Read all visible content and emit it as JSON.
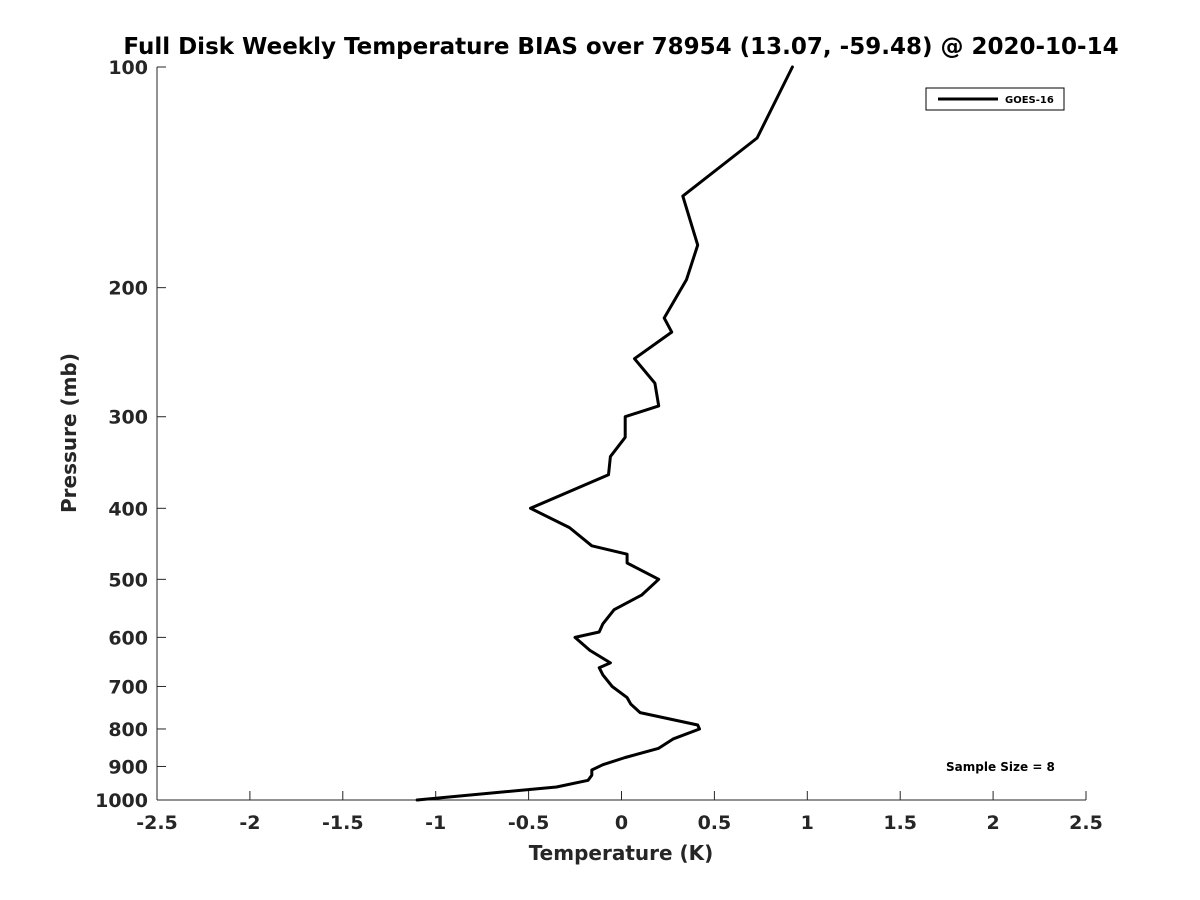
{
  "chart_data": {
    "type": "line",
    "title": "Full Disk Weekly Temperature BIAS over 78954 (13.07, -59.48) @ 2020-10-14",
    "xlabel": "Temperature (K)",
    "ylabel": "Pressure (mb)",
    "xlim": [
      -2.5,
      2.5
    ],
    "ylim": [
      100,
      1000
    ],
    "yscale": "log",
    "y_reversed": true,
    "x_ticks": [
      -2.5,
      -2,
      -1.5,
      -1,
      -0.5,
      0,
      0.5,
      1,
      1.5,
      2,
      2.5
    ],
    "x_tick_labels": [
      "-2.5",
      "-2",
      "-1.5",
      "-1",
      "-0.5",
      "0",
      "0.5",
      "1",
      "1.5",
      "2",
      "2.5"
    ],
    "y_ticks": [
      100,
      200,
      300,
      400,
      500,
      600,
      700,
      800,
      900,
      1000
    ],
    "y_tick_labels": [
      "100",
      "200",
      "300",
      "400",
      "500",
      "600",
      "700",
      "800",
      "900",
      "1000"
    ],
    "grid": false,
    "legend_position": "top-right",
    "series": [
      {
        "name": "GOES-16",
        "color": "#000000",
        "points": [
          {
            "t": 0.92,
            "p": 100
          },
          {
            "t": 0.73,
            "p": 125
          },
          {
            "t": 0.33,
            "p": 150
          },
          {
            "t": 0.41,
            "p": 175
          },
          {
            "t": 0.35,
            "p": 195
          },
          {
            "t": 0.23,
            "p": 220
          },
          {
            "t": 0.27,
            "p": 230
          },
          {
            "t": 0.07,
            "p": 250
          },
          {
            "t": 0.18,
            "p": 270
          },
          {
            "t": 0.2,
            "p": 290
          },
          {
            "t": 0.02,
            "p": 300
          },
          {
            "t": 0.02,
            "p": 320
          },
          {
            "t": -0.06,
            "p": 340
          },
          {
            "t": -0.07,
            "p": 360
          },
          {
            "t": -0.49,
            "p": 400
          },
          {
            "t": -0.28,
            "p": 425
          },
          {
            "t": -0.16,
            "p": 450
          },
          {
            "t": 0.03,
            "p": 462
          },
          {
            "t": 0.03,
            "p": 475
          },
          {
            "t": 0.2,
            "p": 500
          },
          {
            "t": 0.11,
            "p": 525
          },
          {
            "t": -0.04,
            "p": 550
          },
          {
            "t": -0.1,
            "p": 575
          },
          {
            "t": -0.12,
            "p": 590
          },
          {
            "t": -0.25,
            "p": 600
          },
          {
            "t": -0.17,
            "p": 625
          },
          {
            "t": -0.06,
            "p": 650
          },
          {
            "t": -0.12,
            "p": 660
          },
          {
            "t": -0.1,
            "p": 675
          },
          {
            "t": -0.05,
            "p": 700
          },
          {
            "t": 0.03,
            "p": 725
          },
          {
            "t": 0.05,
            "p": 740
          },
          {
            "t": 0.1,
            "p": 760
          },
          {
            "t": 0.41,
            "p": 790
          },
          {
            "t": 0.42,
            "p": 800
          },
          {
            "t": 0.28,
            "p": 825
          },
          {
            "t": 0.2,
            "p": 850
          },
          {
            "t": 0.02,
            "p": 875
          },
          {
            "t": -0.1,
            "p": 895
          },
          {
            "t": -0.16,
            "p": 910
          },
          {
            "t": -0.16,
            "p": 925
          },
          {
            "t": -0.18,
            "p": 940
          },
          {
            "t": -0.35,
            "p": 960
          },
          {
            "t": -1.1,
            "p": 1000
          }
        ]
      }
    ],
    "annotations": [
      "Sample Size = 8"
    ]
  }
}
